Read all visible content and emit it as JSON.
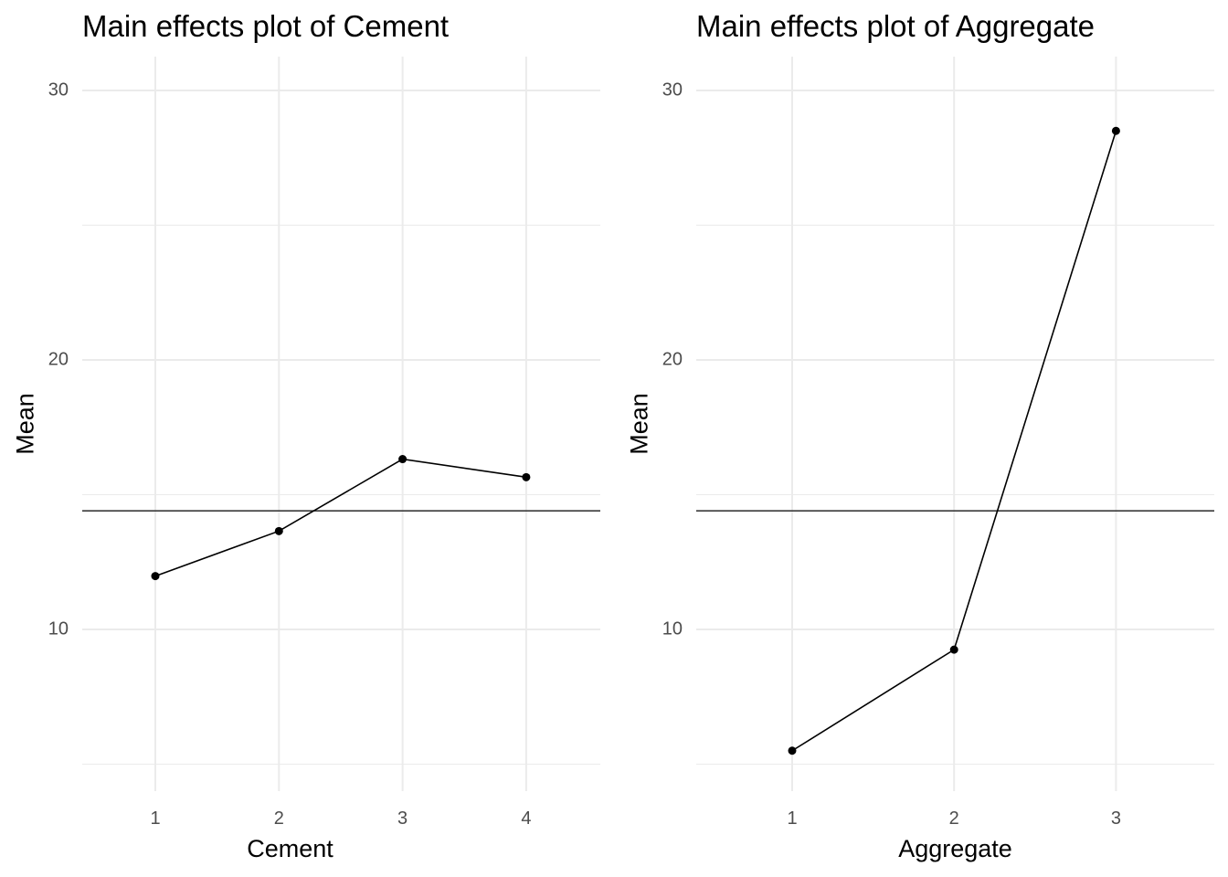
{
  "chart_data": [
    {
      "type": "line",
      "title": "Main effects plot of Cement",
      "xlabel": "Cement",
      "ylabel": "Mean",
      "categories": [
        "1",
        "2",
        "3",
        "4"
      ],
      "values": [
        11.98,
        13.65,
        16.32,
        15.65
      ],
      "reference_line": 14.4,
      "yticks": [
        "10",
        "20",
        "30"
      ],
      "ylim": [
        4.0,
        31.2
      ],
      "grid": true,
      "line_color": "#000000",
      "grid_color": "#ebebeb"
    },
    {
      "type": "line",
      "title": "Main effects plot of Aggregate",
      "xlabel": "Aggregate",
      "ylabel": "Mean",
      "categories": [
        "1",
        "2",
        "3"
      ],
      "values": [
        5.5,
        9.25,
        28.5
      ],
      "reference_line": 14.4,
      "yticks": [
        "10",
        "20",
        "30"
      ],
      "ylim": [
        4.0,
        31.2
      ],
      "grid": true,
      "line_color": "#000000",
      "grid_color": "#ebebeb"
    }
  ]
}
